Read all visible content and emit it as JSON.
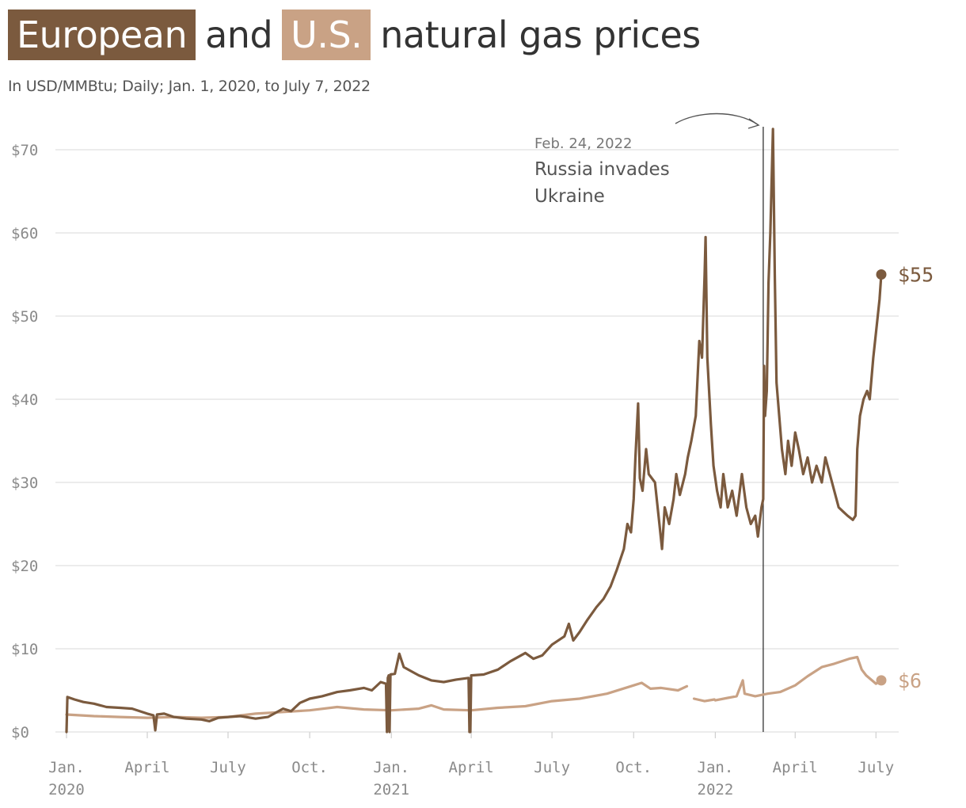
{
  "title": {
    "part1": "European",
    "part2": "and",
    "part3": "U.S.",
    "part4": "natural gas prices"
  },
  "subtitle": "In USD/MMBtu; Daily; Jan. 1, 2020, to July 7, 2022",
  "colors": {
    "europe": "#7b5a3e",
    "us": "#c9a285",
    "grid": "#e1e1e1",
    "axis_text": "#8a8a8a"
  },
  "chart_data": {
    "type": "line",
    "title": "European and U.S. natural gas prices",
    "subtitle": "In USD/MMBtu; Daily; Jan. 1, 2020, to July 7, 2022",
    "ylim": [
      0,
      75
    ],
    "y_ticks": [
      {
        "value": 0,
        "label": "$0"
      },
      {
        "value": 10,
        "label": "$10"
      },
      {
        "value": 20,
        "label": "$20"
      },
      {
        "value": 30,
        "label": "$30"
      },
      {
        "value": 40,
        "label": "$40"
      },
      {
        "value": 50,
        "label": "$50"
      },
      {
        "value": 60,
        "label": "$60"
      },
      {
        "value": 70,
        "label": "$70"
      }
    ],
    "x_range": [
      "2020-01-01",
      "2022-07-07"
    ],
    "x_ticks": [
      {
        "date": "2020-01-01",
        "label": "Jan.",
        "label2": "2020"
      },
      {
        "date": "2020-04-01",
        "label": "April",
        "label2": ""
      },
      {
        "date": "2020-07-01",
        "label": "July",
        "label2": ""
      },
      {
        "date": "2020-10-01",
        "label": "Oct.",
        "label2": ""
      },
      {
        "date": "2021-01-01",
        "label": "Jan.",
        "label2": "2021"
      },
      {
        "date": "2021-04-01",
        "label": "April",
        "label2": ""
      },
      {
        "date": "2021-07-01",
        "label": "July",
        "label2": ""
      },
      {
        "date": "2021-10-01",
        "label": "Oct.",
        "label2": ""
      },
      {
        "date": "2022-01-01",
        "label": "Jan.",
        "label2": "2022"
      },
      {
        "date": "2022-04-01",
        "label": "April",
        "label2": ""
      },
      {
        "date": "2022-07-01",
        "label": "July",
        "label2": ""
      }
    ],
    "annotation": {
      "date": "2022-02-24",
      "date_label": "Feb. 24, 2022",
      "text_line1": "Russia invades",
      "text_line2": "Ukraine"
    },
    "series": [
      {
        "name": "European",
        "end_label": "$55",
        "points": [
          [
            "2020-01-01",
            0.0
          ],
          [
            "2020-01-02",
            4.2
          ],
          [
            "2020-01-10",
            3.9
          ],
          [
            "2020-01-20",
            3.6
          ],
          [
            "2020-02-01",
            3.4
          ],
          [
            "2020-02-15",
            3.0
          ],
          [
            "2020-03-01",
            2.9
          ],
          [
            "2020-03-15",
            2.8
          ],
          [
            "2020-04-01",
            2.2
          ],
          [
            "2020-04-08",
            2.0
          ],
          [
            "2020-04-10",
            0.2
          ],
          [
            "2020-04-12",
            2.1
          ],
          [
            "2020-04-20",
            2.2
          ],
          [
            "2020-05-01",
            1.8
          ],
          [
            "2020-05-15",
            1.6
          ],
          [
            "2020-06-01",
            1.5
          ],
          [
            "2020-06-10",
            1.3
          ],
          [
            "2020-06-20",
            1.7
          ],
          [
            "2020-07-01",
            1.8
          ],
          [
            "2020-07-15",
            1.9
          ],
          [
            "2020-08-01",
            1.6
          ],
          [
            "2020-08-15",
            1.8
          ],
          [
            "2020-09-01",
            2.8
          ],
          [
            "2020-09-10",
            2.5
          ],
          [
            "2020-09-20",
            3.5
          ],
          [
            "2020-10-01",
            4.0
          ],
          [
            "2020-10-15",
            4.3
          ],
          [
            "2020-11-01",
            4.8
          ],
          [
            "2020-11-15",
            5.0
          ],
          [
            "2020-12-01",
            5.3
          ],
          [
            "2020-12-10",
            5.0
          ],
          [
            "2020-12-20",
            6.0
          ],
          [
            "2020-12-26",
            5.8
          ],
          [
            "2020-12-27",
            0.0
          ],
          [
            "2020-12-28",
            6.5
          ],
          [
            "2020-12-29",
            6.8
          ],
          [
            "2020-12-30",
            0.0
          ],
          [
            "2020-12-31",
            6.9
          ],
          [
            "2021-01-05",
            7.0
          ],
          [
            "2021-01-10",
            9.4
          ],
          [
            "2021-01-15",
            7.8
          ],
          [
            "2021-01-25",
            7.2
          ],
          [
            "2021-02-01",
            6.8
          ],
          [
            "2021-02-15",
            6.2
          ],
          [
            "2021-03-01",
            6.0
          ],
          [
            "2021-03-15",
            6.3
          ],
          [
            "2021-03-29",
            6.5
          ],
          [
            "2021-03-30",
            0.0
          ],
          [
            "2021-03-31",
            0.0
          ],
          [
            "2021-04-01",
            6.8
          ],
          [
            "2021-04-15",
            6.9
          ],
          [
            "2021-05-01",
            7.5
          ],
          [
            "2021-05-15",
            8.5
          ],
          [
            "2021-06-01",
            9.5
          ],
          [
            "2021-06-10",
            8.8
          ],
          [
            "2021-06-20",
            9.2
          ],
          [
            "2021-07-01",
            10.5
          ],
          [
            "2021-07-15",
            11.5
          ],
          [
            "2021-07-20",
            13.0
          ],
          [
            "2021-07-25",
            11.0
          ],
          [
            "2021-08-01",
            12.0
          ],
          [
            "2021-08-10",
            13.5
          ],
          [
            "2021-08-20",
            15.0
          ],
          [
            "2021-08-28",
            16.0
          ],
          [
            "2021-09-05",
            17.5
          ],
          [
            "2021-09-12",
            19.5
          ],
          [
            "2021-09-20",
            22.0
          ],
          [
            "2021-09-24",
            25.0
          ],
          [
            "2021-09-28",
            24.0
          ],
          [
            "2021-10-01",
            28.0
          ],
          [
            "2021-10-03",
            33.0
          ],
          [
            "2021-10-06",
            39.5
          ],
          [
            "2021-10-08",
            30.5
          ],
          [
            "2021-10-11",
            29.0
          ],
          [
            "2021-10-15",
            34.0
          ],
          [
            "2021-10-18",
            31.0
          ],
          [
            "2021-10-25",
            30.0
          ],
          [
            "2021-10-30",
            25.0
          ],
          [
            "2021-11-02",
            22.0
          ],
          [
            "2021-11-05",
            27.0
          ],
          [
            "2021-11-10",
            25.0
          ],
          [
            "2021-11-15",
            28.0
          ],
          [
            "2021-11-18",
            31.0
          ],
          [
            "2021-11-22",
            28.5
          ],
          [
            "2021-11-28",
            31.0
          ],
          [
            "2021-12-01",
            33.0
          ],
          [
            "2021-12-05",
            35.0
          ],
          [
            "2021-12-10",
            38.0
          ],
          [
            "2021-12-14",
            47.0
          ],
          [
            "2021-12-17",
            45.0
          ],
          [
            "2021-12-20",
            55.0
          ],
          [
            "2021-12-21",
            59.5
          ],
          [
            "2021-12-23",
            45.0
          ],
          [
            "2021-12-27",
            37.0
          ],
          [
            "2021-12-30",
            32.0
          ],
          [
            "2022-01-03",
            29.0
          ],
          [
            "2022-01-07",
            27.0
          ],
          [
            "2022-01-10",
            31.0
          ],
          [
            "2022-01-15",
            27.0
          ],
          [
            "2022-01-20",
            29.0
          ],
          [
            "2022-01-25",
            26.0
          ],
          [
            "2022-01-31",
            31.0
          ],
          [
            "2022-02-05",
            27.0
          ],
          [
            "2022-02-10",
            25.0
          ],
          [
            "2022-02-15",
            26.0
          ],
          [
            "2022-02-18",
            23.5
          ],
          [
            "2022-02-22",
            27.0
          ],
          [
            "2022-02-24",
            28.0
          ],
          [
            "2022-02-25",
            44.0
          ],
          [
            "2022-02-26",
            38.0
          ],
          [
            "2022-02-28",
            41.0
          ],
          [
            "2022-03-02",
            54.0
          ],
          [
            "2022-03-04",
            60.0
          ],
          [
            "2022-03-07",
            72.5
          ],
          [
            "2022-03-09",
            55.0
          ],
          [
            "2022-03-11",
            42.0
          ],
          [
            "2022-03-14",
            38.0
          ],
          [
            "2022-03-17",
            34.0
          ],
          [
            "2022-03-21",
            31.0
          ],
          [
            "2022-03-24",
            35.0
          ],
          [
            "2022-03-28",
            32.0
          ],
          [
            "2022-04-01",
            36.0
          ],
          [
            "2022-04-05",
            34.0
          ],
          [
            "2022-04-10",
            31.0
          ],
          [
            "2022-04-15",
            33.0
          ],
          [
            "2022-04-20",
            30.0
          ],
          [
            "2022-04-25",
            32.0
          ],
          [
            "2022-05-01",
            30.0
          ],
          [
            "2022-05-05",
            33.0
          ],
          [
            "2022-05-10",
            31.0
          ],
          [
            "2022-05-15",
            29.0
          ],
          [
            "2022-05-20",
            27.0
          ],
          [
            "2022-05-25",
            26.5
          ],
          [
            "2022-05-30",
            26.0
          ],
          [
            "2022-06-05",
            25.5
          ],
          [
            "2022-06-08",
            26.0
          ],
          [
            "2022-06-10",
            34.0
          ],
          [
            "2022-06-13",
            38.0
          ],
          [
            "2022-06-17",
            40.0
          ],
          [
            "2022-06-21",
            41.0
          ],
          [
            "2022-06-24",
            40.0
          ],
          [
            "2022-06-28",
            45.0
          ],
          [
            "2022-07-01",
            48.0
          ],
          [
            "2022-07-05",
            52.0
          ],
          [
            "2022-07-07",
            55.0
          ]
        ]
      },
      {
        "name": "U.S.",
        "end_label": "$6",
        "points": [
          [
            "2020-01-01",
            2.1
          ],
          [
            "2020-02-01",
            1.9
          ],
          [
            "2020-03-01",
            1.8
          ],
          [
            "2020-04-01",
            1.7
          ],
          [
            "2020-05-01",
            1.8
          ],
          [
            "2020-06-01",
            1.7
          ],
          [
            "2020-07-01",
            1.8
          ],
          [
            "2020-08-01",
            2.2
          ],
          [
            "2020-09-01",
            2.4
          ],
          [
            "2020-10-01",
            2.6
          ],
          [
            "2020-11-01",
            3.0
          ],
          [
            "2020-12-01",
            2.7
          ],
          [
            "2021-01-01",
            2.6
          ],
          [
            "2021-02-01",
            2.8
          ],
          [
            "2021-02-15",
            3.2
          ],
          [
            "2021-03-01",
            2.7
          ],
          [
            "2021-04-01",
            2.6
          ],
          [
            "2021-05-01",
            2.9
          ],
          [
            "2021-06-01",
            3.1
          ],
          [
            "2021-07-01",
            3.7
          ],
          [
            "2021-08-01",
            4.0
          ],
          [
            "2021-09-01",
            4.6
          ],
          [
            "2021-10-01",
            5.6
          ],
          [
            "2021-10-10",
            5.9
          ],
          [
            "2021-10-20",
            5.2
          ],
          [
            "2021-11-01",
            5.3
          ],
          [
            "2021-11-20",
            5.0
          ],
          [
            "2021-11-30",
            5.5
          ],
          null,
          [
            "2021-12-08",
            4.0
          ],
          [
            "2021-12-20",
            3.7
          ],
          [
            "2021-12-31",
            3.9
          ],
          null,
          [
            "2022-01-01",
            3.8
          ],
          [
            "2022-01-15",
            4.1
          ],
          [
            "2022-01-25",
            4.3
          ],
          [
            "2022-02-01",
            6.2
          ],
          [
            "2022-02-03",
            4.6
          ],
          [
            "2022-02-15",
            4.3
          ],
          [
            "2022-03-01",
            4.6
          ],
          [
            "2022-03-15",
            4.8
          ],
          [
            "2022-04-01",
            5.6
          ],
          [
            "2022-04-15",
            6.7
          ],
          [
            "2022-05-01",
            7.8
          ],
          [
            "2022-05-15",
            8.2
          ],
          [
            "2022-06-01",
            8.8
          ],
          [
            "2022-06-10",
            9.0
          ],
          [
            "2022-06-15",
            7.5
          ],
          [
            "2022-06-20",
            6.8
          ],
          [
            "2022-07-01",
            5.8
          ],
          [
            "2022-07-07",
            6.2
          ]
        ]
      }
    ]
  }
}
